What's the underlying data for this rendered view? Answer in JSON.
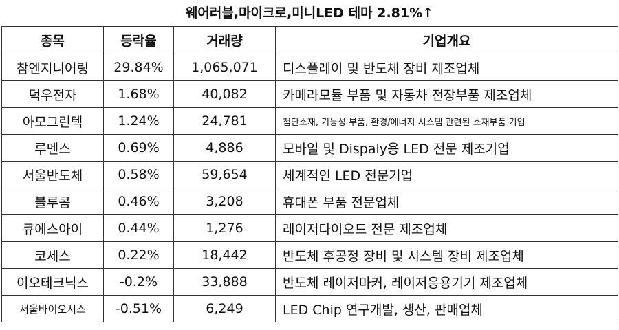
{
  "title": "웨어러블,마이크로,미니LED 테마 2.81%↑",
  "headers": [
    "종목",
    "등락율",
    "거래량",
    "기업개요"
  ],
  "rows": [
    {
      "name": "참엔지니어링",
      "rate": "29.84%",
      "volume": "1,065,071",
      "desc": "디스플레이 및 반도체 장비 제조업체"
    },
    {
      "name": "덕우전자",
      "rate": "1.68%",
      "volume": "40,082",
      "desc": "카메라모듈 부품 및 자동차 전장부품 제조업체"
    },
    {
      "name": "아모그린텍",
      "rate": "1.24%",
      "volume": "24,781",
      "desc": "첨단소재, 기능성 부품, 환경/에너지 시스템 관련된 소재부품 기업"
    },
    {
      "name": "루멘스",
      "rate": "0.69%",
      "volume": "4,886",
      "desc": "모바일 및 Dispaly용 LED 전문 제조기업"
    },
    {
      "name": "서울반도체",
      "rate": "0.58%",
      "volume": "59,654",
      "desc": "세계적인 LED 전문기업"
    },
    {
      "name": "블루콤",
      "rate": "0.46%",
      "volume": "3,208",
      "desc": "휴대폰 부품 전문업체"
    },
    {
      "name": "큐에스아이",
      "rate": "0.44%",
      "volume": "1,276",
      "desc": "레이저다이오드 전문 제조업체"
    },
    {
      "name": "코세스",
      "rate": "0.22%",
      "volume": "18,442",
      "desc": "반도체 후공정 장비 및 시스템 장비 제조업체"
    },
    {
      "name": "이오테크닉스",
      "rate": "-0.2%",
      "volume": "33,888",
      "desc": "반도체 레이저마커, 레이저응용기기 제조업체"
    },
    {
      "name": "서울바이오시스",
      "rate": "-0.51%",
      "volume": "6,249",
      "desc": "LED Chip 연구개발, 생산, 판매업체"
    }
  ]
}
